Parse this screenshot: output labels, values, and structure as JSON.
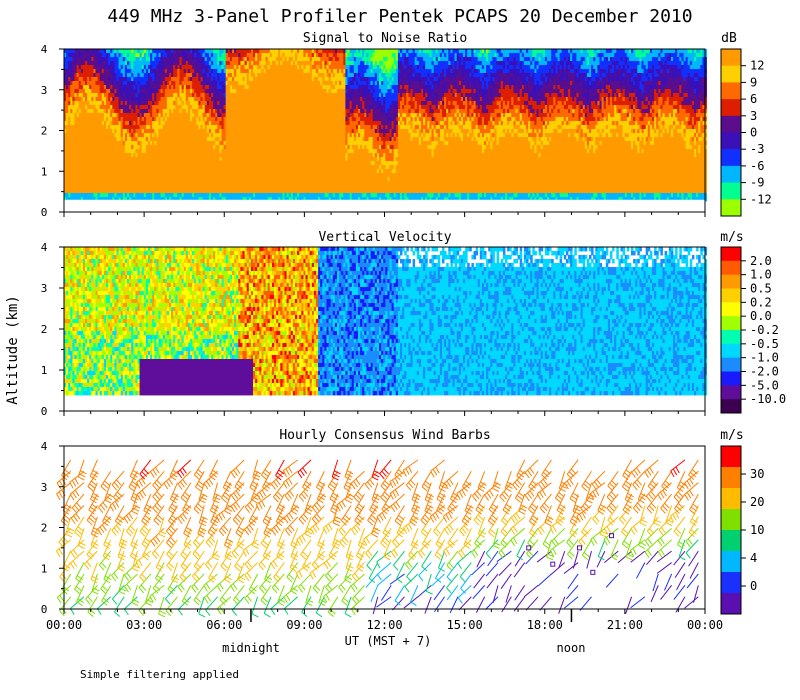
{
  "figure": {
    "title": "449 MHz 3-Panel Profiler Pentek PCAPS 20 December 2010",
    "ylabel": "Altitude (km)",
    "xlabel": "UT  (MST + 7)",
    "time_markers": [
      {
        "label": "midnight",
        "x": 7.0
      },
      {
        "label": "noon",
        "x": 19.0
      }
    ],
    "footnote": "Simple filtering applied"
  },
  "chart_data": [
    {
      "type": "heatmap",
      "title": "Signal to Noise Ratio",
      "units": "dB",
      "x_ticks": [
        "00:00",
        "03:00",
        "06:00",
        "09:00",
        "12:00",
        "15:00",
        "18:00",
        "21:00",
        "00:00"
      ],
      "xlim": [
        0,
        24
      ],
      "ylim": [
        0,
        4
      ],
      "y_ticks": [
        0,
        1,
        2,
        3,
        4
      ],
      "colorbar": {
        "labels": [
          "12",
          "9",
          "6",
          "3",
          "0",
          "-3",
          "-6",
          "-9",
          "-12"
        ],
        "colors": [
          "#ff9a00",
          "#ffd000",
          "#ff6a00",
          "#dd1f00",
          "#5b0e8c",
          "#3a10b8",
          "#1030ff",
          "#00b6ff",
          "#00ff90",
          "#9cff00"
        ]
      },
      "description": "High SNR (12 dB) below 2-3 km, peak near 07:00-10:30 UT; decreasing aloft"
    },
    {
      "type": "heatmap",
      "title": "Vertical Velocity",
      "units": "m/s",
      "x_ticks": [
        "00:00",
        "03:00",
        "06:00",
        "09:00",
        "12:00",
        "15:00",
        "18:00",
        "21:00",
        "00:00"
      ],
      "xlim": [
        0,
        24
      ],
      "ylim": [
        0,
        4
      ],
      "y_ticks": [
        0,
        1,
        2,
        3,
        4
      ],
      "colorbar": {
        "labels": [
          "2.0",
          "1.0",
          "0.5",
          "0.2",
          "0.0",
          "-0.2",
          "-0.5",
          "-1.0",
          "-2.0",
          "-5.0",
          "-10.0"
        ],
        "colors": [
          "#ff0000",
          "#ff5a00",
          "#ff9a00",
          "#ffd000",
          "#ffff00",
          "#a0ff00",
          "#00ffb0",
          "#00d8ff",
          "#1a8cff",
          "#1a1aff",
          "#5e0e9a",
          "#3c0050"
        ]
      },
      "description": "Mixed positive/negative velocities before 12 UT, mostly -0.5 to -1.0 m/s after"
    },
    {
      "type": "barbs",
      "title": "Hourly Consensus Wind Barbs",
      "units": "m/s",
      "x_ticks": [
        "00:00",
        "03:00",
        "06:00",
        "09:00",
        "12:00",
        "15:00",
        "18:00",
        "21:00",
        "00:00"
      ],
      "xlim": [
        0,
        24
      ],
      "ylim": [
        0,
        4
      ],
      "y_ticks": [
        0,
        1,
        2,
        3,
        4
      ],
      "colorbar": {
        "labels": [
          "30",
          "20",
          "10",
          "4",
          "0"
        ],
        "colors": [
          "#ff0000",
          "#ff8000",
          "#ffbc00",
          "#7fe000",
          "#00d070",
          "#00b8ff",
          "#1a30ff",
          "#5a10b0"
        ]
      },
      "description": "Strong westerlies (15-25 m/s) aloft, weaker and veering winds near surface, calm low levels after 16 UT"
    }
  ]
}
